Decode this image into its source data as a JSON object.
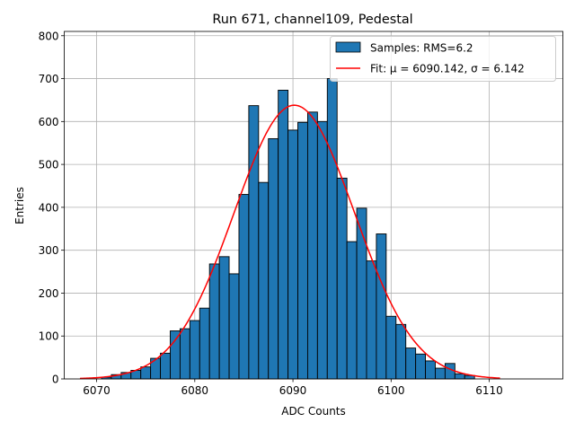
{
  "chart_data": {
    "type": "bar",
    "title": "Run 671, channel109, Pedestal",
    "xlabel": "ADC Counts",
    "ylabel": "Entries",
    "xlim": [
      6066.7,
      6117.5
    ],
    "ylim": [
      0,
      810
    ],
    "xticks": [
      6070,
      6080,
      6090,
      6100,
      6110
    ],
    "yticks": [
      0,
      100,
      200,
      300,
      400,
      500,
      600,
      700,
      800
    ],
    "grid": true,
    "legend_position": "top-right",
    "bin_width": 1,
    "series": [
      {
        "name": "Samples: RMS=6.2",
        "kind": "histogram",
        "color": "#1f77b4",
        "edgecolor": "#000000",
        "bins": [
          6071,
          6072,
          6073,
          6074,
          6075,
          6076,
          6077,
          6078,
          6079,
          6080,
          6081,
          6082,
          6083,
          6084,
          6085,
          6086,
          6087,
          6088,
          6089,
          6090,
          6091,
          6092,
          6093,
          6094,
          6095,
          6096,
          6097,
          6098,
          6099,
          6100,
          6101,
          6102,
          6103,
          6104,
          6105,
          6106,
          6107,
          6108
        ],
        "values": [
          4,
          10,
          15,
          20,
          28,
          48,
          60,
          112,
          117,
          136,
          165,
          268,
          285,
          245,
          430,
          637,
          458,
          560,
          673,
          580,
          598,
          622,
          600,
          700,
          468,
          320,
          398,
          275,
          338,
          146,
          127,
          72,
          58,
          42,
          25,
          36,
          12,
          8
        ]
      },
      {
        "name": "Fit: μ = 6090.142, σ = 6.142",
        "kind": "gaussian-fit",
        "color": "#ff0000",
        "mu": 6090.142,
        "sigma": 6.142,
        "amplitude": 638,
        "x_range": [
          6068.3,
          6111.1
        ]
      }
    ]
  }
}
